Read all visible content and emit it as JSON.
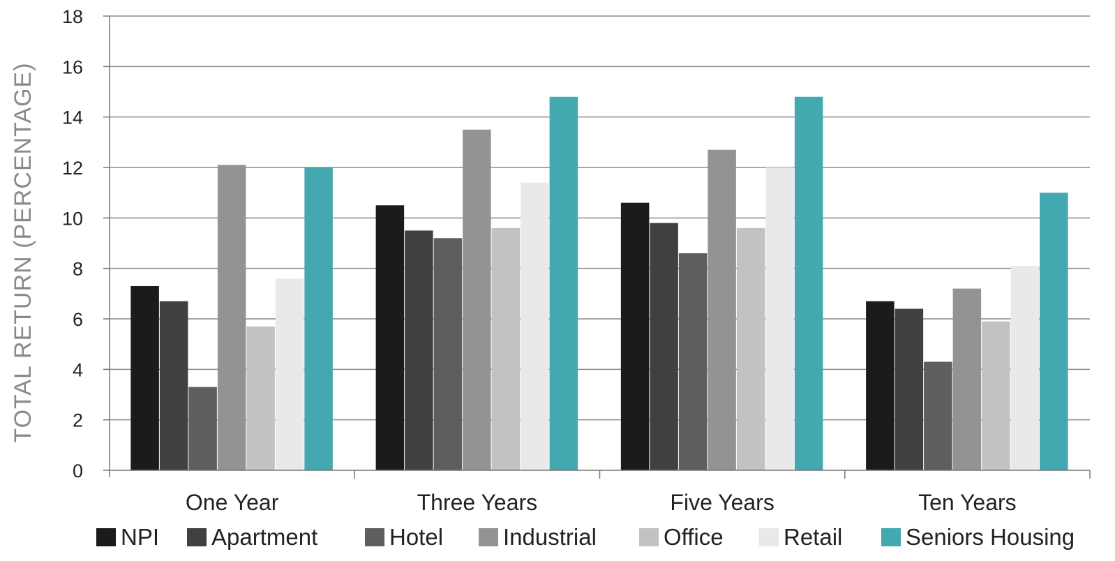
{
  "chart_data": {
    "type": "bar",
    "title": "",
    "xlabel": "",
    "ylabel": "TOTAL RETURN (PERCENTAGE)",
    "ylim": [
      0,
      18
    ],
    "yticks": [
      0,
      2,
      4,
      6,
      8,
      10,
      12,
      14,
      16,
      18
    ],
    "grid": true,
    "legend_position": "bottom",
    "categories": [
      "One Year",
      "Three Years",
      "Five Years",
      "Ten Years"
    ],
    "series": [
      {
        "name": "NPI",
        "color": "#1b1b1b",
        "values": [
          7.3,
          10.5,
          10.6,
          6.7
        ]
      },
      {
        "name": "Apartment",
        "color": "#404040",
        "values": [
          6.7,
          9.5,
          9.8,
          6.4
        ]
      },
      {
        "name": "Hotel",
        "color": "#5e5e5e",
        "values": [
          3.3,
          9.2,
          8.6,
          4.3
        ]
      },
      {
        "name": "Industrial",
        "color": "#939393",
        "values": [
          12.1,
          13.5,
          12.7,
          7.2
        ]
      },
      {
        "name": "Office",
        "color": "#c2c2c2",
        "values": [
          5.7,
          9.6,
          9.6,
          5.9
        ]
      },
      {
        "name": "Retail",
        "color": "#e9e9e9",
        "values": [
          7.6,
          11.4,
          12.0,
          8.1
        ]
      },
      {
        "name": "Seniors Housing",
        "color": "#43a8b0",
        "values": [
          12.0,
          14.8,
          14.8,
          11.0
        ]
      }
    ]
  }
}
